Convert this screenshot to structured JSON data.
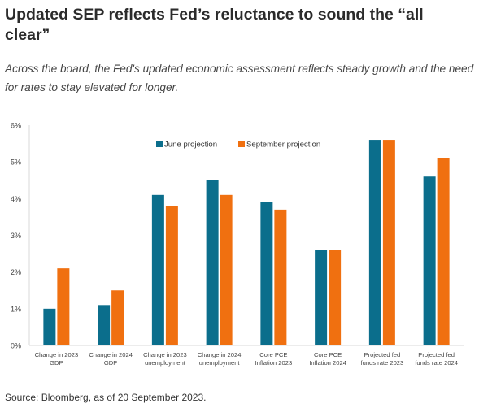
{
  "header": {
    "title": "Updated SEP reflects Fed’s reluctance to sound the “all clear”",
    "subtitle": "Across the board, the Fed's updated economic assessment reflects steady growth and the need for rates to stay elevated for longer."
  },
  "footer": {
    "source": "Source: Bloomberg, as of 20 September 2023."
  },
  "chart_data": {
    "type": "bar",
    "categories": [
      [
        "Change in 2023",
        "GDP"
      ],
      [
        "Change in 2024",
        "GDP"
      ],
      [
        "Change in  2023",
        "unemployment"
      ],
      [
        "Change in 2024",
        "unemployment"
      ],
      [
        "Core PCE",
        "Inflation 2023"
      ],
      [
        "Core PCE",
        "Inflation 2024"
      ],
      [
        "Projected fed",
        "funds rate 2023"
      ],
      [
        "Projected fed",
        "funds rate 2024"
      ]
    ],
    "series": [
      {
        "name": "June projection",
        "color": "#0b6e8c",
        "values": [
          1.0,
          1.1,
          4.1,
          4.5,
          3.9,
          2.6,
          5.6,
          4.6
        ]
      },
      {
        "name": "September projection",
        "color": "#f07010",
        "values": [
          2.1,
          1.5,
          3.8,
          4.1,
          3.7,
          2.6,
          5.6,
          5.1
        ]
      }
    ],
    "ylim": [
      0,
      6
    ],
    "yticks": [
      "0%",
      "1%",
      "2%",
      "3%",
      "4%",
      "5%",
      "6%"
    ],
    "legend": "top-center",
    "grid": false
  }
}
